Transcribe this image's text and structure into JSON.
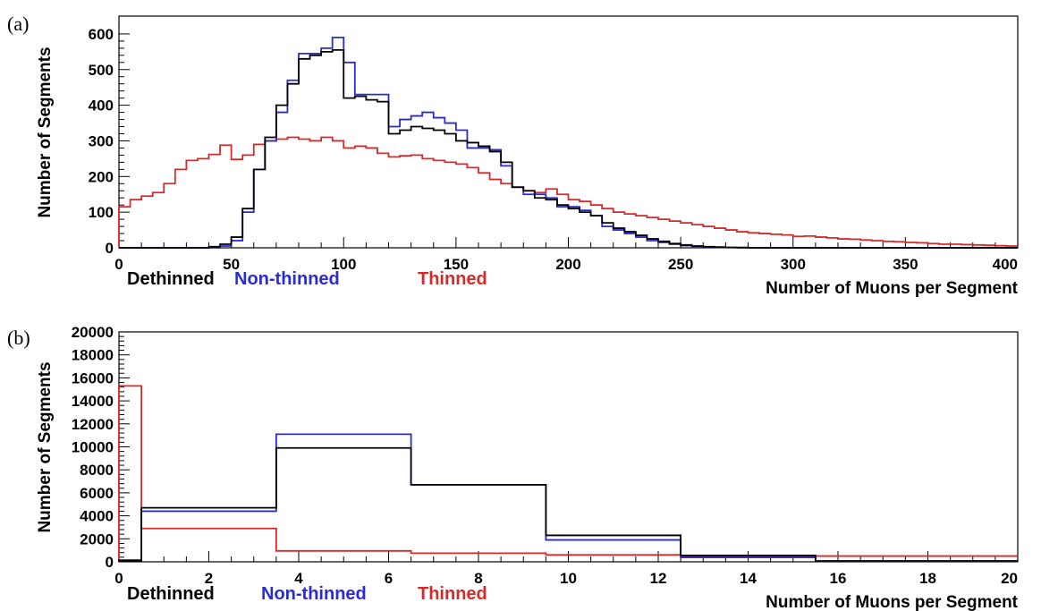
{
  "colors": {
    "dethinned": "#000000",
    "non_thinned": "#2a2ad6",
    "thinned": "#d62a2a"
  },
  "chart_data": [
    {
      "panel": "(a)",
      "type": "line",
      "step": true,
      "xlabel": "Number of Muons per Segment",
      "ylabel": "Number of Segments",
      "xlim": [
        0,
        400
      ],
      "ylim": [
        0,
        650
      ],
      "xticks": [
        0,
        50,
        100,
        150,
        200,
        250,
        300,
        350,
        400
      ],
      "yticks": [
        0,
        100,
        200,
        300,
        400,
        500,
        600
      ],
      "legend": [
        "Dethinned",
        "Non-thinned",
        "Thinned"
      ],
      "bin_width": 5,
      "series": [
        {
          "name": "Dethinned",
          "color": "#000000",
          "values": [
            0,
            0,
            0,
            0,
            0,
            0,
            0,
            0,
            3,
            10,
            30,
            110,
            220,
            310,
            400,
            460,
            530,
            540,
            550,
            555,
            420,
            425,
            415,
            410,
            320,
            330,
            340,
            335,
            330,
            320,
            300,
            295,
            285,
            270,
            240,
            170,
            160,
            140,
            135,
            120,
            110,
            100,
            90,
            70,
            55,
            45,
            35,
            25,
            18,
            12,
            8,
            5,
            3,
            2,
            1,
            1,
            0,
            0,
            0,
            0,
            0,
            0,
            0,
            0,
            0,
            0,
            0,
            0,
            0,
            0,
            0,
            0,
            0,
            0,
            0,
            0,
            0,
            0,
            0,
            0
          ]
        },
        {
          "name": "Non-thinned",
          "color": "#2a2ad6",
          "values": [
            0,
            0,
            0,
            0,
            0,
            0,
            0,
            0,
            0,
            5,
            20,
            100,
            220,
            300,
            380,
            470,
            545,
            545,
            560,
            590,
            520,
            430,
            430,
            430,
            340,
            360,
            370,
            380,
            365,
            350,
            330,
            280,
            280,
            275,
            230,
            170,
            150,
            150,
            140,
            115,
            115,
            105,
            90,
            60,
            50,
            40,
            30,
            20,
            15,
            10,
            6,
            4,
            2,
            1,
            1,
            0,
            0,
            0,
            0,
            0,
            0,
            0,
            0,
            0,
            0,
            0,
            0,
            0,
            0,
            0,
            0,
            0,
            0,
            0,
            0,
            0,
            0,
            0,
            0,
            0
          ]
        },
        {
          "name": "Thinned",
          "color": "#d62a2a",
          "values": [
            115,
            135,
            145,
            155,
            180,
            220,
            245,
            250,
            262,
            288,
            248,
            260,
            290,
            300,
            305,
            310,
            305,
            300,
            310,
            300,
            280,
            285,
            280,
            265,
            255,
            258,
            260,
            250,
            245,
            240,
            235,
            225,
            210,
            192,
            180,
            170,
            160,
            155,
            165,
            150,
            135,
            130,
            120,
            110,
            100,
            95,
            90,
            85,
            80,
            75,
            70,
            65,
            60,
            55,
            50,
            45,
            42,
            40,
            38,
            36,
            32,
            33,
            30,
            28,
            25,
            24,
            22,
            20,
            18,
            17,
            15,
            14,
            12,
            10,
            10,
            9,
            8,
            7,
            6,
            5
          ]
        }
      ]
    },
    {
      "panel": "(b)",
      "type": "line",
      "step": true,
      "xlabel": "Number of Muons per Segment",
      "ylabel": "Number of Segments",
      "xlim": [
        0,
        20
      ],
      "ylim": [
        0,
        20000
      ],
      "xticks": [
        0,
        2,
        4,
        6,
        8,
        10,
        12,
        14,
        16,
        18,
        20
      ],
      "yticks": [
        0,
        2000,
        4000,
        6000,
        8000,
        10000,
        12000,
        14000,
        16000,
        18000,
        20000
      ],
      "legend": [
        "Dethinned",
        "Non-thinned",
        "Thinned"
      ],
      "series": [
        {
          "name": "Dethinned",
          "color": "#000000",
          "bins": [
            [
              0,
              0.5,
              100
            ],
            [
              0.5,
              3.5,
              4700
            ],
            [
              3.5,
              6.5,
              9900
            ],
            [
              6.5,
              9.5,
              6700
            ],
            [
              9.5,
              12.5,
              2300
            ],
            [
              12.5,
              15.5,
              550
            ],
            [
              15.5,
              20,
              80
            ]
          ]
        },
        {
          "name": "Non-thinned",
          "color": "#2a2ad6",
          "bins": [
            [
              0,
              0.5,
              150
            ],
            [
              0.5,
              3.5,
              4400
            ],
            [
              3.5,
              6.5,
              11100
            ],
            [
              6.5,
              9.5,
              6700
            ],
            [
              9.5,
              12.5,
              1900
            ],
            [
              12.5,
              15.5,
              380
            ],
            [
              15.5,
              20,
              60
            ]
          ]
        },
        {
          "name": "Thinned",
          "color": "#d62a2a",
          "bins": [
            [
              0,
              0.5,
              15300
            ],
            [
              0.5,
              3.5,
              2900
            ],
            [
              3.5,
              6.5,
              950
            ],
            [
              6.5,
              9.5,
              750
            ],
            [
              9.5,
              12.5,
              600
            ],
            [
              12.5,
              20,
              500
            ]
          ]
        }
      ]
    }
  ]
}
